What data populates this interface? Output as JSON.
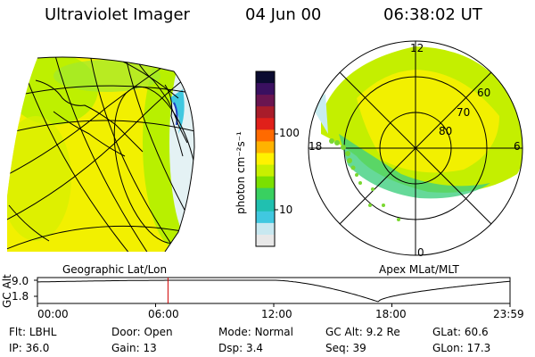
{
  "header": {
    "title": "Ultraviolet Imager",
    "date": "04 Jun 00",
    "time": "06:38:02 UT"
  },
  "colorbar": {
    "unit_label": "photon cm⁻²s⁻¹",
    "ticks": [
      "100",
      "10"
    ],
    "colors": [
      "#0b0b30",
      "#3a1060",
      "#6a1550",
      "#a81c2a",
      "#e0201a",
      "#ff6a00",
      "#ffb300",
      "#fff200",
      "#c8f000",
      "#7be000",
      "#39d060",
      "#20c0b0",
      "#40c8e0",
      "#c8e8f0",
      "#e8e8e8"
    ]
  },
  "left_panel": {
    "caption": "Geographic Lat/Lon"
  },
  "right_panel": {
    "caption": "Apex MLat/MLT",
    "mlt_labels": {
      "top": "12",
      "left": "18",
      "right": "6",
      "bottom": "0"
    },
    "lat_labels": [
      "60",
      "70",
      "80"
    ]
  },
  "orbit": {
    "ylabel": "GC Alt",
    "y_ticks": [
      "9.0",
      "1.8"
    ],
    "y_range_re": [
      1.8,
      9.0
    ],
    "x_range_hours": [
      0,
      24
    ],
    "x_ticks": [
      "00:00",
      "06:00",
      "12:00",
      "18:00",
      "23:59"
    ],
    "apogee_hours": [
      7.5,
      12.0
    ],
    "perigee_hour": 17.3,
    "current_hour": 6.63,
    "marker_color": "#d00000"
  },
  "info": {
    "row1": [
      {
        "label": "Flt:",
        "value": "LBHL"
      },
      {
        "label": "Door:",
        "value": "Open"
      },
      {
        "label": "Mode:",
        "value": "Normal"
      },
      {
        "label": "GC Alt:",
        "value": "9.2 Re"
      },
      {
        "label": "GLat:",
        "value": "60.6"
      }
    ],
    "row2": [
      {
        "label": "IP:",
        "value": "36.0"
      },
      {
        "label": "Gain:",
        "value": "13"
      },
      {
        "label": "Dsp:",
        "value": "3.4"
      },
      {
        "label": "Seq:",
        "value": "39"
      },
      {
        "label": "GLon:",
        "value": "17.3"
      }
    ]
  }
}
